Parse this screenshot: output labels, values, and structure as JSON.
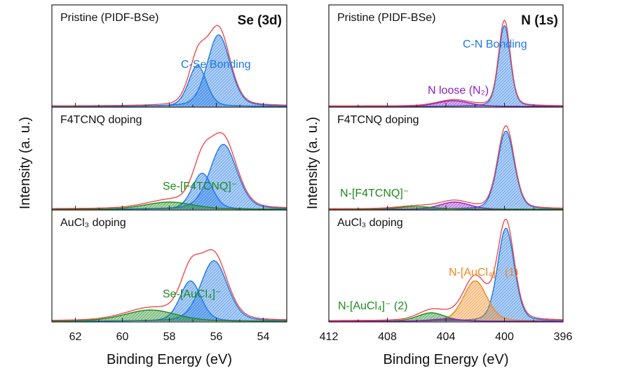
{
  "chart_data": [
    {
      "type": "area",
      "title": "Se (3d)",
      "xlabel": "Binding Energy (eV)",
      "ylabel": "Intensity (a. u.)",
      "xlim": [
        63,
        53
      ],
      "x_reversed": true,
      "xticks": [
        62,
        60,
        58,
        56,
        54
      ],
      "grid": false,
      "panels": [
        {
          "label": "Pristine (PIDF-BSe)",
          "peaks": [
            {
              "name": "C-Se Bonding",
              "center": 55.9,
              "height": 0.7,
              "fwhm": 1.15,
              "color": "#1f77e8"
            },
            {
              "name": "",
              "center": 56.8,
              "height": 0.4,
              "fwhm": 0.9,
              "color": "#1f77e8"
            }
          ],
          "annotations": [
            {
              "text": "C-Se Bonding",
              "color": "#1f77e8"
            }
          ]
        },
        {
          "label": "F4TCNQ doping",
          "peaks": [
            {
              "name": "",
              "center": 55.7,
              "height": 0.63,
              "fwhm": 1.35,
              "color": "#1f77e8"
            },
            {
              "name": "",
              "center": 56.6,
              "height": 0.35,
              "fwhm": 1.0,
              "color": "#1f77e8"
            },
            {
              "name": "Se-[F4TCNQ]⁻",
              "center": 58.0,
              "height": 0.07,
              "fwhm": 2.4,
              "color": "#1e8a1e"
            }
          ],
          "annotations": [
            {
              "text": "Se-[F4TCNQ]⁻",
              "color": "#1e8a1e"
            }
          ]
        },
        {
          "label": "AuCl₃ doping",
          "peaks": [
            {
              "name": "",
              "center": 56.1,
              "height": 0.54,
              "fwhm": 1.35,
              "color": "#1f77e8"
            },
            {
              "name": "",
              "center": 57.1,
              "height": 0.36,
              "fwhm": 1.05,
              "color": "#1f77e8"
            },
            {
              "name": "Se-[AuCl₄]⁻",
              "center": 58.8,
              "height": 0.1,
              "fwhm": 2.6,
              "color": "#1e8a1e"
            }
          ],
          "annotations": [
            {
              "text": "Se-[AuCl₄]⁻",
              "color": "#1e8a1e"
            }
          ]
        }
      ],
      "envelope_color": "#f04040"
    },
    {
      "type": "area",
      "title": "N (1s)",
      "xlabel": "Binding Energy (eV)",
      "ylabel": "Intensity (a. u.)",
      "xlim": [
        412,
        396
      ],
      "x_reversed": true,
      "xticks": [
        412,
        408,
        404,
        400,
        396
      ],
      "grid": false,
      "panels": [
        {
          "label": "Pristine (PIDF-BSe)",
          "peaks": [
            {
              "name": "C-N Bonding",
              "center": 400.0,
              "height": 0.79,
              "fwhm": 0.95,
              "color": "#1f77e8"
            },
            {
              "name": "N loose (N₂)",
              "center": 403.5,
              "height": 0.055,
              "fwhm": 2.6,
              "color": "#8a1fc8"
            }
          ],
          "annotations": [
            {
              "text": "C-N Bonding",
              "color": "#1f77e8"
            },
            {
              "text": "N loose (N₂)",
              "color": "#8a1fc8"
            }
          ]
        },
        {
          "label": "F4TCNQ doping",
          "peaks": [
            {
              "name": "",
              "center": 399.9,
              "height": 0.76,
              "fwhm": 1.35,
              "color": "#1f77e8"
            },
            {
              "name": "",
              "center": 403.4,
              "height": 0.07,
              "fwhm": 2.4,
              "color": "#8a1fc8"
            },
            {
              "name": "N-[F4TCNQ]⁻",
              "center": 406.0,
              "height": 0.025,
              "fwhm": 3.0,
              "color": "#1e8a1e"
            }
          ],
          "annotations": [
            {
              "text": "N-[F4TCNQ]⁻",
              "color": "#1e8a1e"
            }
          ]
        },
        {
          "label": "AuCl₃ doping",
          "peaks": [
            {
              "name": "",
              "center": 399.9,
              "height": 0.83,
              "fwhm": 1.35,
              "color": "#1f77e8"
            },
            {
              "name": "N-[AuCl₄]⁻ (1)",
              "center": 402.0,
              "height": 0.36,
              "fwhm": 1.9,
              "color": "#f08a1e"
            },
            {
              "name": "N-[AuCl₄]⁻ (2)",
              "center": 405.0,
              "height": 0.075,
              "fwhm": 2.2,
              "color": "#1e8a1e"
            },
            {
              "name": "",
              "center": 404.0,
              "height": 0.02,
              "fwhm": 2.5,
              "color": "#8a1fc8"
            }
          ],
          "annotations": [
            {
              "text": "N-[AuCl₄]⁻ (1)",
              "color": "#f08a1e"
            },
            {
              "text": "N-[AuCl₄]⁻ (2)",
              "color": "#1e8a1e"
            }
          ]
        }
      ],
      "envelope_color": "#f04040"
    }
  ]
}
